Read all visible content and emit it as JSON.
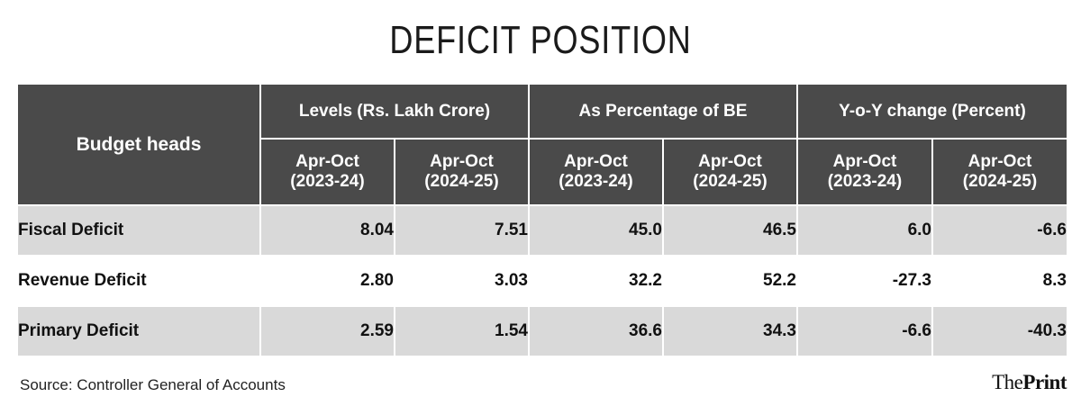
{
  "title": "DEFICIT POSITION",
  "table": {
    "row_header": "Budget heads",
    "groups": [
      "Levels (Rs. Lakh Crore)",
      "As Percentage of BE",
      "Y-o-Y change (Percent)"
    ],
    "periods": [
      "Apr-Oct\n(2023-24)",
      "Apr-Oct\n(2024-25)"
    ]
  },
  "chart_data": {
    "type": "table",
    "title": "DEFICIT POSITION",
    "columns": [
      "Levels (Rs. Lakh Crore) Apr-Oct (2023-24)",
      "Levels (Rs. Lakh Crore) Apr-Oct (2024-25)",
      "As Percentage of BE Apr-Oct (2023-24)",
      "As Percentage of BE Apr-Oct (2024-25)",
      "Y-o-Y change (Percent) Apr-Oct (2023-24)",
      "Y-o-Y change (Percent) Apr-Oct (2024-25)"
    ],
    "rows": [
      {
        "label": "Fiscal Deficit",
        "values": [
          "8.04",
          "7.51",
          "45.0",
          "46.5",
          "6.0",
          "-6.6"
        ]
      },
      {
        "label": "Revenue Deficit",
        "values": [
          "2.80",
          "3.03",
          "32.2",
          "52.2",
          "-27.3",
          "8.3"
        ]
      },
      {
        "label": "Primary Deficit",
        "values": [
          "2.59",
          "1.54",
          "36.6",
          "34.3",
          "-6.6",
          "-40.3"
        ]
      }
    ]
  },
  "footer": {
    "source": "Source: Controller General of Accounts",
    "logo_pre": "The",
    "logo_main": "Print"
  },
  "colors": {
    "header_bg": "#4a4a4a",
    "shaded_row": "#d9d9d9"
  }
}
